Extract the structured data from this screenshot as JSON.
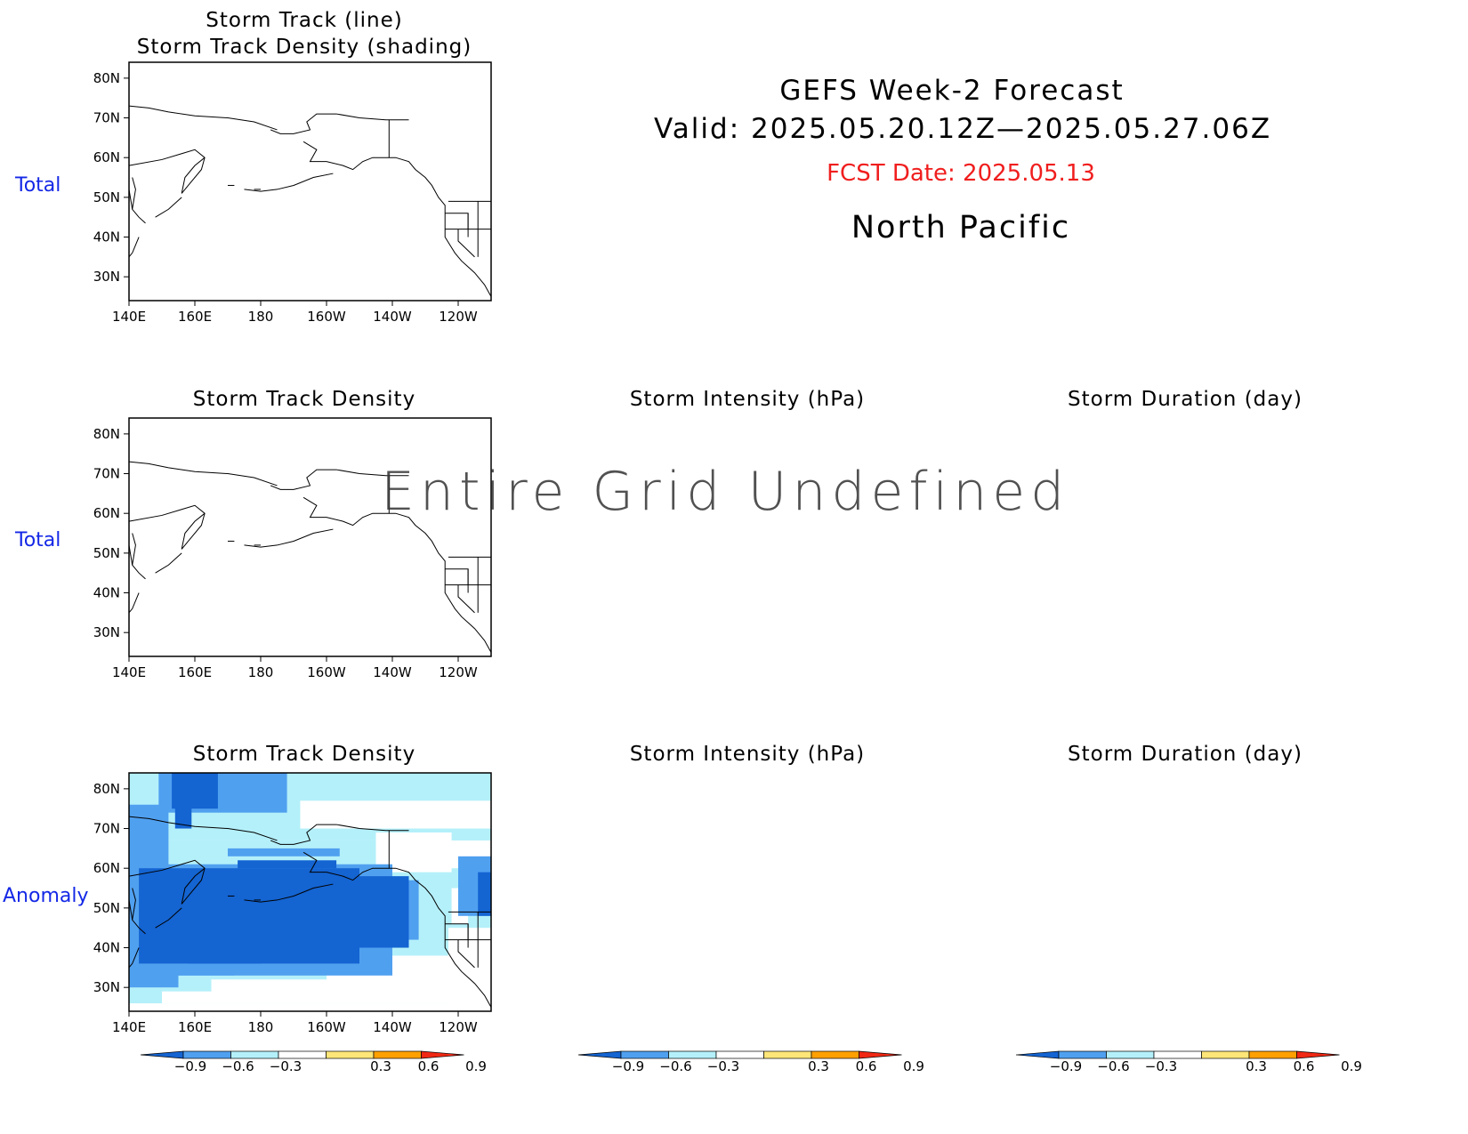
{
  "header": {
    "title": "GEFS Week-2 Forecast",
    "valid": "Valid: 2025.05.20.12Z—2025.05.27.06Z",
    "fcst_date": "FCST Date: 2025.05.13",
    "region": "North Pacific",
    "fcst_color": "#f01e1e"
  },
  "rows": {
    "row1_label": "Total",
    "row2_label": "Total",
    "row3_label": "Anomaly",
    "label_color": "#1428e6"
  },
  "panels": {
    "p1_title_a": "Storm Track (line)",
    "p1_title_b": "Storm Track Density (shading)",
    "p2_title": "Storm Track Density",
    "p2_intensity": "Storm Intensity (hPa)",
    "p2_duration": "Storm Duration (day)",
    "p3_title": "Storm Track Density",
    "p3_intensity": "Storm Intensity (hPa)",
    "p3_duration": "Storm Duration (day)",
    "undefined_msg": "Entire Grid Undefined"
  },
  "axes": {
    "lat_ticks": [
      "80N",
      "70N",
      "60N",
      "50N",
      "40N",
      "30N"
    ],
    "lon_ticks": [
      "140E",
      "160E",
      "180",
      "160W",
      "140W",
      "120W"
    ]
  },
  "colorbar": {
    "labels": [
      "−0.9",
      "−0.6",
      "−0.3",
      "0.3",
      "0.6",
      "0.9"
    ],
    "colors": [
      "#1464d2",
      "#50a0f0",
      "#b4f0fa",
      "#ffffff",
      "#ffe678",
      "#ffa000",
      "#f02814"
    ]
  },
  "anomaly_colors": {
    "dark": "#1464d2",
    "mid": "#50a0f0",
    "light": "#b4f0fa"
  }
}
